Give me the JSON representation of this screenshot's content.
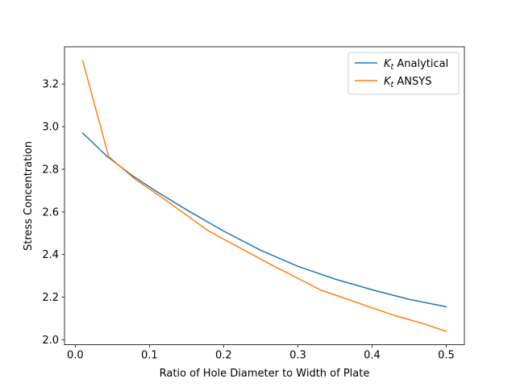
{
  "chart_data": {
    "type": "line",
    "title": "",
    "xlabel": "Ratio of Hole Diameter to Width of Plate",
    "ylabel": "Stress Concentration",
    "xlim": [
      -0.0145,
      0.5245
    ],
    "ylim": [
      1.977,
      3.3745
    ],
    "xticks": [
      0.0,
      0.1,
      0.2,
      0.3,
      0.4,
      0.5
    ],
    "xtick_labels": [
      "0.0",
      "0.1",
      "0.2",
      "0.3",
      "0.4",
      "0.5"
    ],
    "yticks": [
      2.0,
      2.2,
      2.4,
      2.6,
      2.8,
      3.0,
      3.2
    ],
    "ytick_labels": [
      "2.0",
      "2.2",
      "2.4",
      "2.6",
      "2.8",
      "3.0",
      "3.2"
    ],
    "grid": false,
    "legend_position": "top-right",
    "series": [
      {
        "label_main": "K",
        "label_sub": "t",
        "label_rest": " Analytical",
        "color": "#1f77b4",
        "x": [
          0.01,
          0.043,
          0.077,
          0.11,
          0.15,
          0.2,
          0.25,
          0.3,
          0.35,
          0.4,
          0.45,
          0.5
        ],
        "y": [
          2.97,
          2.86,
          2.77,
          2.695,
          2.61,
          2.51,
          2.42,
          2.345,
          2.285,
          2.235,
          2.19,
          2.155
        ]
      },
      {
        "label_main": "K",
        "label_sub": "t",
        "label_rest": " ANSYS",
        "color": "#ff7f0e",
        "x": [
          0.01,
          0.045,
          0.08,
          0.12,
          0.18,
          0.26,
          0.33,
          0.4,
          0.43,
          0.47,
          0.5
        ],
        "y": [
          3.31,
          2.86,
          2.755,
          2.66,
          2.51,
          2.36,
          2.235,
          2.15,
          2.115,
          2.075,
          2.04
        ]
      }
    ]
  }
}
